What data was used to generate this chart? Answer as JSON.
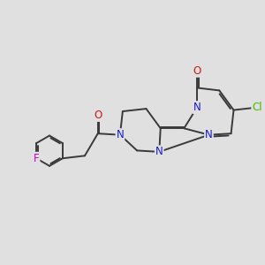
{
  "bg_color": "#e0e0e0",
  "bond_color": "#3a3a3a",
  "bond_width": 1.4,
  "dbo": 0.07,
  "atom_colors": {
    "N": "#1a1acc",
    "O": "#cc1a1a",
    "F": "#cc00cc",
    "Cl": "#44bb00"
  },
  "fs": 8.5
}
